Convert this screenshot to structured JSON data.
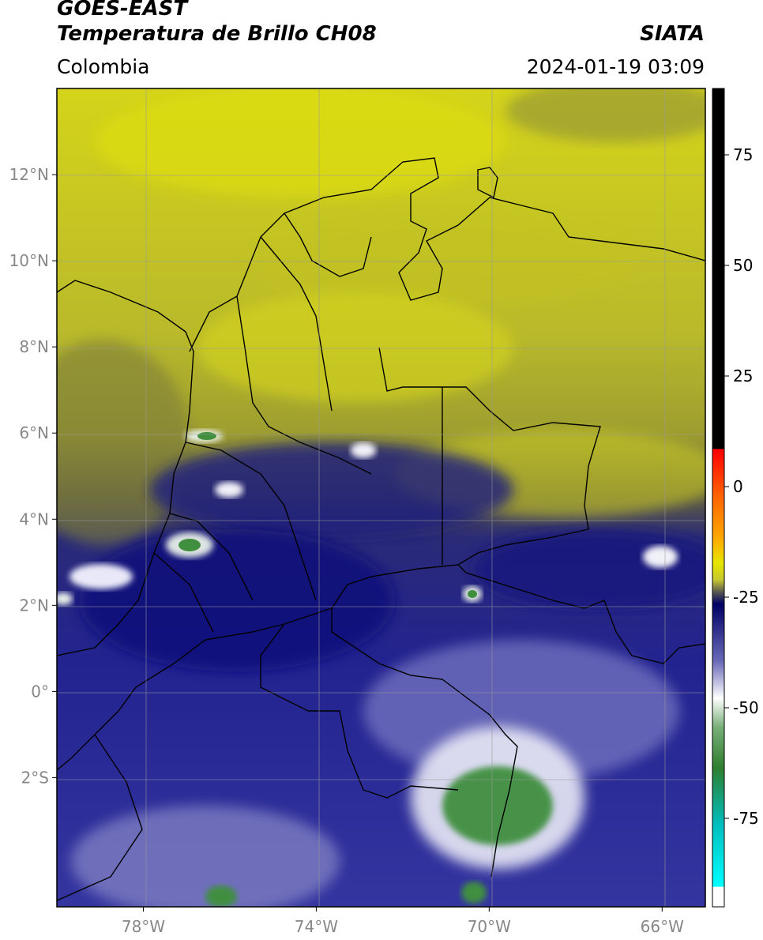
{
  "header": {
    "satellite": "GOES-EAST",
    "product": "Temperatura de Brillo CH08",
    "agency": "SIATA",
    "region": "Colombia",
    "timestamp": "2024-01-19 03:09"
  },
  "map": {
    "lon_range": [
      -80,
      -65
    ],
    "lat_range": [
      -5,
      14
    ],
    "lat_ticks": [
      {
        "value": 12,
        "label": "12°N"
      },
      {
        "value": 10,
        "label": "10°N"
      },
      {
        "value": 8,
        "label": "8°N"
      },
      {
        "value": 6,
        "label": "6°N"
      },
      {
        "value": 4,
        "label": "4°N"
      },
      {
        "value": 2,
        "label": "2°N"
      },
      {
        "value": 0,
        "label": "0°"
      },
      {
        "value": -2,
        "label": "2°S"
      }
    ],
    "lon_ticks": [
      {
        "value": -78,
        "label": "78°W"
      },
      {
        "value": -74,
        "label": "74°W"
      },
      {
        "value": -70,
        "label": "70°W"
      },
      {
        "value": -66,
        "label": "66°W"
      }
    ],
    "grid": true
  },
  "colorbar": {
    "range": [
      -95,
      90
    ],
    "ticks": [
      {
        "value": 75,
        "label": "75"
      },
      {
        "value": 50,
        "label": "50"
      },
      {
        "value": 25,
        "label": "25"
      },
      {
        "value": 0,
        "label": "0"
      },
      {
        "value": -25,
        "label": "-25"
      },
      {
        "value": -50,
        "label": "-50"
      },
      {
        "value": -75,
        "label": "-75"
      }
    ],
    "colors": {
      "warm": "#000000",
      "hot": "#ff0000",
      "orange": "#ff9900",
      "yellow": "#e6e600",
      "olive": "#8a8a2a",
      "navy": "#000066",
      "periwinkle": "#8a8acc",
      "white": "#ffffff",
      "green": "#2f7f2f",
      "teal": "#00cccc"
    }
  }
}
